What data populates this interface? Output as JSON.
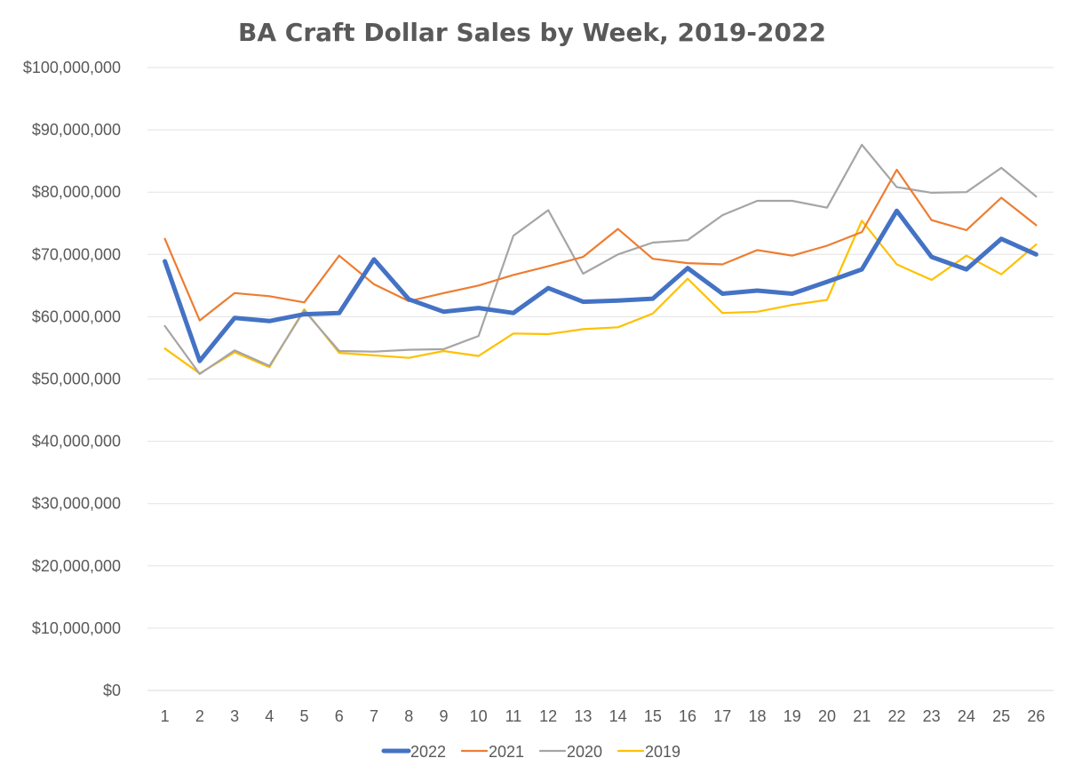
{
  "chart_data": {
    "type": "line",
    "title": "BA Craft Dollar Sales by Week, 2019-2022",
    "xlabel": "",
    "ylabel": "",
    "categories": [
      "1",
      "2",
      "3",
      "4",
      "5",
      "6",
      "7",
      "8",
      "9",
      "10",
      "11",
      "12",
      "13",
      "14",
      "15",
      "16",
      "17",
      "18",
      "19",
      "20",
      "21",
      "22",
      "23",
      "24",
      "25",
      "26"
    ],
    "ylim": [
      0,
      100000000
    ],
    "yticks": [
      0,
      10000000,
      20000000,
      30000000,
      40000000,
      50000000,
      60000000,
      70000000,
      80000000,
      90000000,
      100000000
    ],
    "ytick_labels": [
      "$0",
      "$10,000,000",
      "$20,000,000",
      "$30,000,000",
      "$40,000,000",
      "$50,000,000",
      "$60,000,000",
      "$70,000,000",
      "$80,000,000",
      "$90,000,000",
      "$100,000,000"
    ],
    "grid": true,
    "legend_position": "bottom",
    "series": [
      {
        "name": "2022",
        "color": "#4472C4",
        "values": [
          68900000,
          52900000,
          59800000,
          59300000,
          60400000,
          60600000,
          69200000,
          62800000,
          60800000,
          61400000,
          60600000,
          64600000,
          62400000,
          62600000,
          62900000,
          67800000,
          63700000,
          64200000,
          63700000,
          65600000,
          67600000,
          77000000,
          69600000,
          67600000,
          72500000,
          70000000
        ]
      },
      {
        "name": "2021",
        "color": "#ED7D31",
        "values": [
          72500000,
          59400000,
          63800000,
          63300000,
          62300000,
          69800000,
          65200000,
          62500000,
          63800000,
          65000000,
          66700000,
          68100000,
          69600000,
          74100000,
          69300000,
          68600000,
          68400000,
          70700000,
          69800000,
          71400000,
          73600000,
          83600000,
          75500000,
          73900000,
          79100000,
          74700000
        ]
      },
      {
        "name": "2020",
        "color": "#A5A5A5",
        "values": [
          58500000,
          50800000,
          54600000,
          52100000,
          61000000,
          54500000,
          54400000,
          54700000,
          54800000,
          56900000,
          73000000,
          77100000,
          66900000,
          70000000,
          71900000,
          72300000,
          76300000,
          78600000,
          78600000,
          77500000,
          87600000,
          80800000,
          79900000,
          80000000,
          83900000,
          79300000
        ]
      },
      {
        "name": "2019",
        "color": "#FFC000",
        "values": [
          54900000,
          50900000,
          54300000,
          51900000,
          61200000,
          54200000,
          53800000,
          53400000,
          54500000,
          53700000,
          57300000,
          57200000,
          58000000,
          58300000,
          60500000,
          66100000,
          60600000,
          60800000,
          61900000,
          62700000,
          75400000,
          68400000,
          65900000,
          69800000,
          66800000,
          71600000
        ]
      }
    ]
  }
}
